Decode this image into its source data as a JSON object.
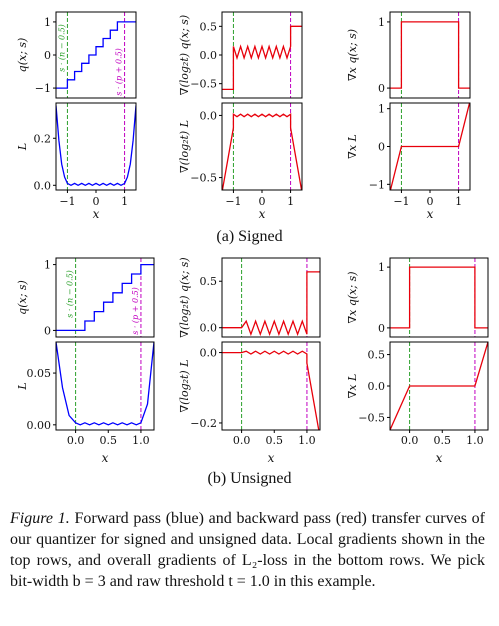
{
  "figure": {
    "label": "Figure 1.",
    "caption": "Forward pass (blue) and backward pass (red) transfer curves of our quantizer for signed and unsigned data. Local gradients shown in the top rows, and overall gradients of L₂-loss in the bottom rows. We pick bit-width b = 3 and raw threshold t = 1.0 in this example.",
    "colors": {
      "forward": "#0000ff",
      "backward": "#e8000b",
      "lower_line": "#2ca02c",
      "upper_line": "#c000c0"
    }
  },
  "groups": [
    {
      "caption": "(a) Signed",
      "x_label": "x",
      "x_ticks": [
        "−1",
        "0",
        "1"
      ],
      "vertical_lines": [
        {
          "x": -1.0,
          "label": "s · (n − 0.5)",
          "color": "#2ca02c"
        },
        {
          "x": 1.0,
          "label": "s · (p + 0.5)",
          "color": "#c000c0"
        }
      ],
      "chart_data": [
        {
          "type": "line",
          "position": "top-left",
          "ylabel": "q(x; s)",
          "yticks": [
            "−1",
            "0",
            "1"
          ],
          "ylim": [
            -1.3,
            1.3
          ],
          "color": "#0000ff",
          "x": [
            -1.4,
            -1.0,
            -1.0,
            -0.75,
            -0.75,
            -0.5,
            -0.5,
            -0.25,
            -0.25,
            0.0,
            0.0,
            0.25,
            0.25,
            0.5,
            0.5,
            0.75,
            0.75,
            1.0,
            1.0,
            1.4
          ],
          "y": [
            -1.0,
            -1.0,
            -0.75,
            -0.75,
            -0.5,
            -0.5,
            -0.25,
            -0.25,
            0.0,
            0.0,
            0.25,
            0.25,
            0.5,
            0.5,
            0.75,
            0.75,
            1.0,
            1.0,
            1.0,
            1.0
          ]
        },
        {
          "type": "line",
          "position": "top-middle",
          "ylabel": "∇(log₂t) q(x; s)",
          "yticks": [
            "−0.5",
            "0.0",
            "0.5"
          ],
          "ylim": [
            -0.75,
            0.75
          ],
          "color": "#e8000b",
          "x": [
            -1.4,
            -1.0,
            -1.0,
            -0.875,
            -0.75,
            -0.625,
            -0.5,
            -0.375,
            -0.25,
            -0.125,
            0.0,
            0.125,
            0.25,
            0.375,
            0.5,
            0.625,
            0.75,
            0.875,
            1.0,
            1.0,
            1.4
          ],
          "y": [
            -0.6,
            -0.6,
            0.15,
            -0.05,
            0.15,
            -0.05,
            0.15,
            -0.05,
            0.15,
            -0.05,
            0.15,
            -0.05,
            0.15,
            -0.05,
            0.15,
            -0.05,
            0.15,
            -0.05,
            0.15,
            0.5,
            0.5
          ]
        },
        {
          "type": "line",
          "position": "top-right",
          "ylabel": "∇x q(x; s)",
          "yticks": [
            "0",
            "1"
          ],
          "ylim": [
            -0.15,
            1.15
          ],
          "color": "#e8000b",
          "x": [
            -1.4,
            -1.0,
            -1.0,
            1.0,
            1.0,
            1.4
          ],
          "y": [
            0,
            0,
            1,
            1,
            0,
            0
          ]
        },
        {
          "type": "line",
          "position": "bottom-left",
          "ylabel": "L",
          "yticks": [
            "0.0",
            "0.2"
          ],
          "ylim": [
            -0.02,
            0.35
          ],
          "color": "#0000ff",
          "x": [
            -1.4,
            -1.3,
            -1.2,
            -1.1,
            -1.0,
            -0.875,
            -0.75,
            -0.625,
            -0.5,
            -0.375,
            -0.25,
            -0.125,
            0.0,
            0.125,
            0.25,
            0.375,
            0.5,
            0.625,
            0.75,
            0.875,
            1.0,
            1.1,
            1.2,
            1.3,
            1.4
          ],
          "y": [
            0.34,
            0.19,
            0.09,
            0.035,
            0.008,
            0.0,
            0.008,
            0.0,
            0.008,
            0.0,
            0.008,
            0.0,
            0.008,
            0.0,
            0.008,
            0.0,
            0.008,
            0.0,
            0.008,
            0.0,
            0.008,
            0.035,
            0.09,
            0.19,
            0.34
          ]
        },
        {
          "type": "line",
          "position": "bottom-middle",
          "ylabel": "∇(log₂t) L",
          "yticks": [
            "−0.5",
            "0.0"
          ],
          "ylim": [
            -0.6,
            0.1
          ],
          "color": "#e8000b",
          "x": [
            -1.4,
            -1.0,
            -1.0,
            -0.875,
            -0.75,
            -0.625,
            -0.5,
            -0.375,
            -0.25,
            -0.125,
            0.0,
            0.125,
            0.25,
            0.375,
            0.5,
            0.625,
            0.75,
            0.875,
            1.0,
            1.0,
            1.4
          ],
          "y": [
            -0.62,
            -0.1,
            0.01,
            -0.01,
            0.01,
            -0.01,
            0.01,
            -0.01,
            0.01,
            -0.01,
            0.01,
            -0.01,
            0.01,
            -0.01,
            0.01,
            -0.01,
            0.01,
            -0.01,
            0.01,
            -0.1,
            -0.62
          ]
        },
        {
          "type": "line",
          "position": "bottom-right",
          "ylabel": "∇x L",
          "yticks": [
            "−1",
            "0",
            "1"
          ],
          "ylim": [
            -1.15,
            1.15
          ],
          "color": "#e8000b",
          "x": [
            -1.4,
            -1.0,
            1.0,
            1.4
          ],
          "y": [
            -1.2,
            0,
            0,
            1.2
          ]
        }
      ]
    },
    {
      "caption": "(b) Unsigned",
      "x_label": "x",
      "x_ticks": [
        "0.0",
        "0.5",
        "1.0"
      ],
      "vertical_lines": [
        {
          "x": 0.0,
          "label": "s · (n − 0.5)",
          "color": "#2ca02c"
        },
        {
          "x": 1.0,
          "label": "s · (p + 0.5)",
          "color": "#c000c0"
        }
      ],
      "chart_data": [
        {
          "type": "line",
          "position": "top-left",
          "ylabel": "q(x; s)",
          "yticks": [
            "0",
            "1"
          ],
          "ylim": [
            -0.1,
            1.1
          ],
          "color": "#0000ff",
          "x": [
            -0.3,
            0.0,
            0.0,
            0.143,
            0.143,
            0.286,
            0.286,
            0.429,
            0.429,
            0.571,
            0.571,
            0.714,
            0.714,
            0.857,
            0.857,
            1.0,
            1.0,
            1.2
          ],
          "y": [
            0.0,
            0.0,
            0.0,
            0.0,
            0.143,
            0.143,
            0.286,
            0.286,
            0.429,
            0.429,
            0.571,
            0.571,
            0.714,
            0.714,
            0.857,
            0.857,
            1.0,
            1.0
          ]
        },
        {
          "type": "line",
          "position": "top-middle",
          "ylabel": "∇(log₂t) q(x; s)",
          "yticks": [
            "0.0",
            "0.5"
          ],
          "ylim": [
            -0.1,
            0.75
          ],
          "color": "#e8000b",
          "x": [
            -0.3,
            0.0,
            0.071,
            0.143,
            0.214,
            0.286,
            0.357,
            0.429,
            0.5,
            0.571,
            0.643,
            0.714,
            0.786,
            0.857,
            0.929,
            1.0,
            1.0,
            1.2
          ],
          "y": [
            0.0,
            0.0,
            0.07,
            -0.07,
            0.07,
            -0.07,
            0.07,
            -0.07,
            0.07,
            -0.07,
            0.07,
            -0.07,
            0.07,
            -0.07,
            0.07,
            -0.07,
            0.6,
            0.6
          ]
        },
        {
          "type": "line",
          "position": "top-right",
          "ylabel": "∇x q(x; s)",
          "yticks": [
            "0",
            "1"
          ],
          "ylim": [
            -0.15,
            1.15
          ],
          "color": "#e8000b",
          "x": [
            -0.3,
            0.0,
            0.0,
            1.0,
            1.0,
            1.2
          ],
          "y": [
            0,
            0,
            1,
            1,
            0,
            0
          ]
        },
        {
          "type": "line",
          "position": "bottom-left",
          "ylabel": "L",
          "yticks": [
            "0.00",
            "0.05"
          ],
          "ylim": [
            -0.005,
            0.08
          ],
          "color": "#0000ff",
          "x": [
            -0.3,
            -0.2,
            -0.1,
            0.0,
            0.071,
            0.143,
            0.214,
            0.286,
            0.357,
            0.429,
            0.5,
            0.571,
            0.643,
            0.714,
            0.786,
            0.857,
            0.929,
            1.0,
            1.1,
            1.2
          ],
          "y": [
            0.08,
            0.036,
            0.009,
            0.002,
            0.0,
            0.002,
            0.0,
            0.002,
            0.0,
            0.002,
            0.0,
            0.002,
            0.0,
            0.002,
            0.0,
            0.002,
            0.0,
            0.002,
            0.02,
            0.08
          ]
        },
        {
          "type": "line",
          "position": "bottom-middle",
          "ylabel": "∇(log₂t) L",
          "yticks": [
            "−0.2",
            "0.0"
          ],
          "ylim": [
            -0.22,
            0.03
          ],
          "color": "#e8000b",
          "x": [
            -0.3,
            0.0,
            0.071,
            0.143,
            0.214,
            0.286,
            0.357,
            0.429,
            0.5,
            0.571,
            0.643,
            0.714,
            0.786,
            0.857,
            0.929,
            1.0,
            1.0,
            1.2
          ],
          "y": [
            0.0,
            0.0,
            0.004,
            -0.004,
            0.004,
            -0.004,
            0.004,
            -0.004,
            0.004,
            -0.004,
            0.004,
            -0.004,
            0.004,
            -0.004,
            0.004,
            -0.004,
            -0.03,
            -0.24
          ]
        },
        {
          "type": "line",
          "position": "bottom-right",
          "ylabel": "∇x L",
          "yticks": [
            "−0.5",
            "0.0",
            "0.5"
          ],
          "ylim": [
            -0.7,
            0.7
          ],
          "color": "#e8000b",
          "x": [
            -0.3,
            0.0,
            1.0,
            1.2
          ],
          "y": [
            -0.7,
            0,
            0,
            0.7
          ]
        }
      ]
    }
  ]
}
